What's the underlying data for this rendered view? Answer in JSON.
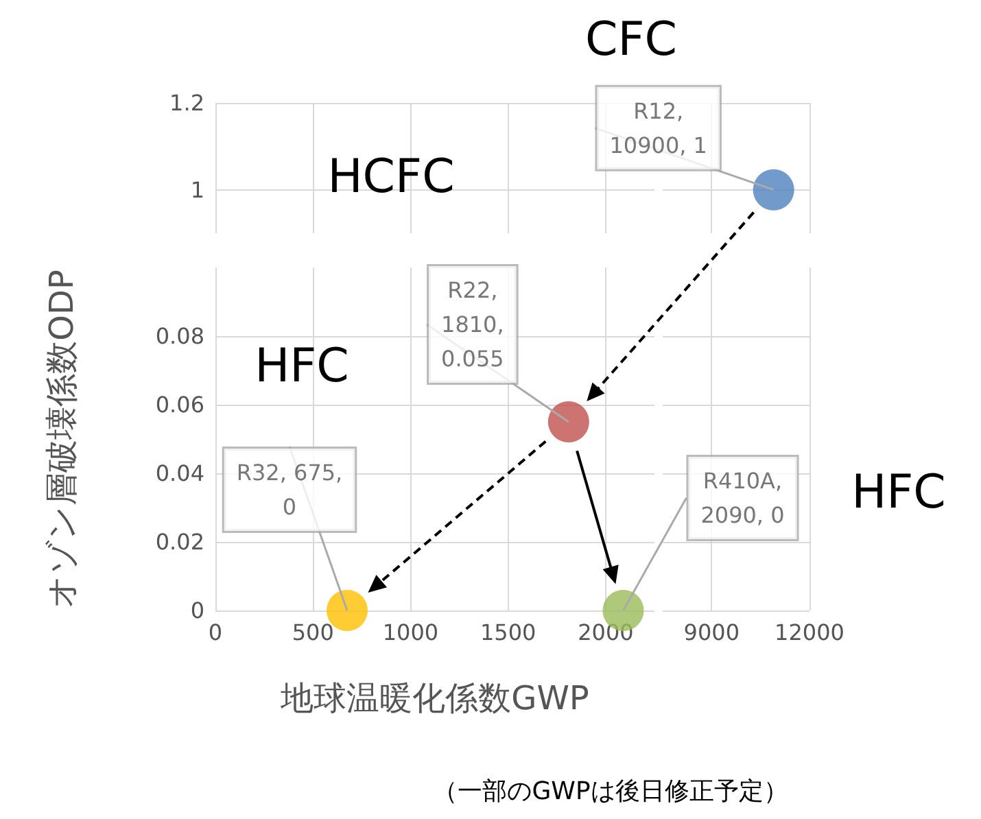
{
  "chart_data": [
    {
      "type": "scatter",
      "xlim": [
        0,
        2250
      ],
      "xticks": [
        0,
        500,
        1000,
        1500,
        2000
      ],
      "ylim": [
        0.9,
        1.2
      ],
      "yticks": [
        1.0,
        1.2
      ],
      "grid": true,
      "tick_labels": "y"
    },
    {
      "type": "scatter",
      "x": [
        10900
      ],
      "values": [
        1
      ],
      "colors": [
        "#4f81bd"
      ],
      "marker": "circle",
      "xlim": [
        7500,
        12000
      ],
      "xticks": [
        9000,
        12000
      ],
      "ylim": [
        0.9,
        1.2
      ],
      "yticks": [
        1.0,
        1.2
      ],
      "grid": true,
      "tick_labels": false,
      "annotations": [
        {
          "text": "R12,\n10900, 1",
          "x": 10900,
          "y": 1
        },
        "CFC"
      ]
    },
    {
      "type": "scatter",
      "xlabel": "地球温暖化係数GWP",
      "ylabel": "オゾン層破壊係数ODP",
      "x": [
        1810,
        675,
        2090
      ],
      "values": [
        0.055,
        0,
        0
      ],
      "colors": [
        "#c0504d",
        "#ffc000",
        "#9bbb59"
      ],
      "marker": "circle",
      "xlim": [
        0,
        2250
      ],
      "xticks": [
        0,
        500,
        1000,
        1500,
        2000
      ],
      "ylim": [
        0,
        0.1
      ],
      "yticks": [
        0,
        0.02,
        0.04,
        0.06,
        0.08
      ],
      "grid": true,
      "annotations": [
        {
          "text": "R22,\n1810,\n0.055",
          "x": 1810,
          "y": 0.055
        },
        {
          "text": "R32, 675,\n0",
          "x": 675,
          "y": 0
        },
        {
          "text": "R410A,\n2090, 0",
          "x": 2090,
          "y": 0
        },
        "HCFC",
        "HFC",
        "（一部のGWPは後日修正予定）"
      ]
    },
    {
      "type": "scatter",
      "xlim": [
        7500,
        12000
      ],
      "xticks": [
        9000,
        12000
      ],
      "ylim": [
        0,
        0.1
      ],
      "yticks": [
        0,
        0.02,
        0.04,
        0.06,
        0.08
      ],
      "grid": true,
      "tick_labels": "x",
      "annotations": [
        "HFC"
      ]
    }
  ]
}
